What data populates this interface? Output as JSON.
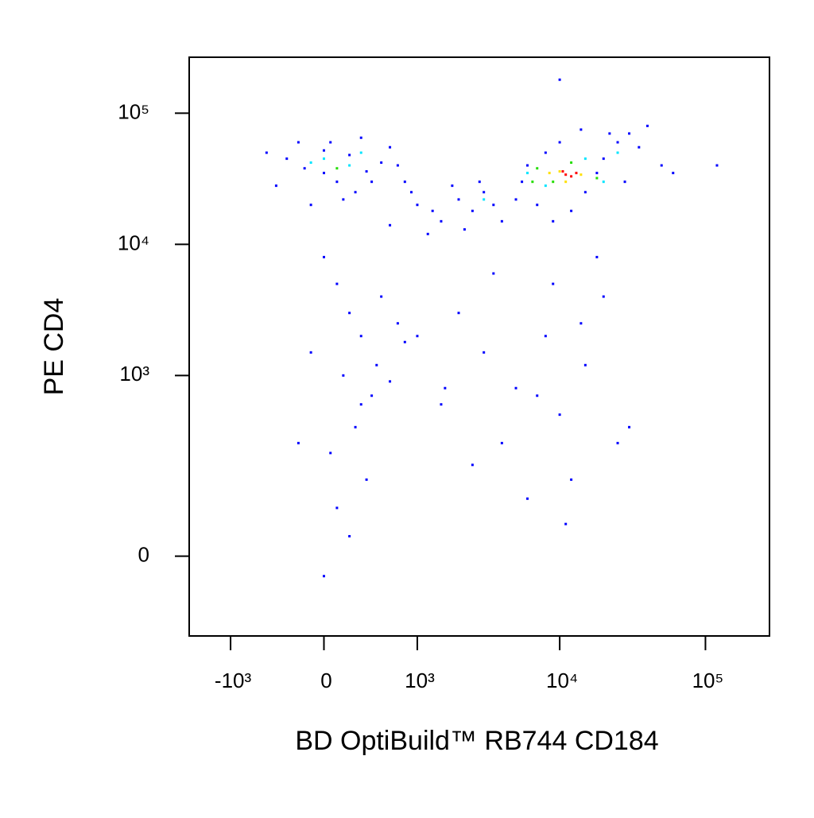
{
  "chart_data": {
    "type": "scatter",
    "x_label": "BD OptiBuild™ RB744 CD184",
    "y_label": "PE CD4",
    "xscale": "biexponential",
    "yscale": "biexponential",
    "xlim": [
      -2000,
      275000
    ],
    "ylim": [
      -160,
      267000
    ],
    "xticks": [
      {
        "value": -1000,
        "label": "-10³"
      },
      0,
      {
        "value": 1000,
        "label": "10³"
      },
      {
        "value": 10000,
        "label": "10⁴"
      },
      {
        "value": 100000,
        "label": "10⁵"
      }
    ],
    "yticks": [
      0,
      {
        "value": 1000,
        "label": "10³"
      },
      {
        "value": 10000,
        "label": "10⁴"
      },
      {
        "value": 100000,
        "label": "10⁵"
      }
    ],
    "series": [
      {
        "color": "#0000ff",
        "x": [
          -300,
          -150,
          0,
          100,
          200,
          350,
          500,
          -400,
          50,
          250,
          600,
          -200,
          150,
          400,
          700,
          -500,
          -100,
          300,
          800,
          0,
          1000,
          1500,
          2000,
          2500,
          3000,
          1200,
          1800,
          3500,
          4000,
          900,
          2200,
          2800,
          5000,
          600,
          1300,
          6000,
          8000,
          15000,
          20000,
          25000,
          30000,
          35000,
          7000,
          10000,
          18000,
          40000,
          12000,
          28000,
          50000,
          5500,
          9000,
          22000,
          14000,
          60000,
          0,
          100,
          200,
          300,
          -100,
          150,
          400,
          250,
          50,
          350,
          100,
          200,
          0,
          500,
          700,
          600,
          300,
          -200,
          800,
          450,
          2000,
          3000,
          5000,
          8000,
          10000,
          15000,
          20000,
          25000,
          12000,
          7000,
          4000,
          9000,
          18000,
          30000,
          6000,
          1500,
          2500,
          11000,
          14000,
          3500,
          120000,
          10000,
          1000,
          1600
        ],
        "y": [
          45000,
          38000,
          52000,
          30000,
          48000,
          36000,
          42000,
          28000,
          60000,
          25000,
          55000,
          60000,
          22000,
          30000,
          40000,
          50000,
          20000,
          65000,
          30000,
          35000,
          20000,
          15000,
          22000,
          18000,
          25000,
          12000,
          28000,
          20000,
          15000,
          25000,
          13000,
          30000,
          22000,
          14000,
          18000,
          40000,
          50000,
          25000,
          45000,
          60000,
          70000,
          55000,
          20000,
          60000,
          35000,
          80000,
          18000,
          30000,
          40000,
          30000,
          15000,
          70000,
          75000,
          35000,
          8000,
          5000,
          3000,
          2000,
          1500,
          1000,
          700,
          400,
          250,
          150,
          80,
          30,
          -30,
          4000,
          2500,
          900,
          600,
          300,
          1800,
          1200,
          3000,
          1500,
          800,
          2000,
          500,
          1200,
          4000,
          300,
          150,
          700,
          300,
          5000,
          8000,
          400,
          100,
          600,
          200,
          50,
          2500,
          6000,
          40000,
          180000,
          2000,
          800
        ]
      },
      {
        "color": "#00e5ff",
        "x": [
          0,
          200,
          -100,
          300,
          6000,
          20000,
          25000,
          3000,
          8000,
          15000
        ],
        "y": [
          45000,
          40000,
          42000,
          50000,
          35000,
          30000,
          50000,
          22000,
          28000,
          45000
        ]
      },
      {
        "color": "#22dd00",
        "x": [
          100,
          7000,
          9000,
          18000,
          12000,
          6500
        ],
        "y": [
          38000,
          38000,
          30000,
          32000,
          42000,
          30000
        ]
      },
      {
        "color": "#ffe000",
        "x": [
          10000,
          14000,
          8500,
          11000
        ],
        "y": [
          36000,
          34000,
          35000,
          30000
        ]
      },
      {
        "color": "#ff0000",
        "x": [
          11000,
          12000,
          10500,
          13000
        ],
        "y": [
          34000,
          33000,
          36000,
          35000
        ]
      }
    ]
  }
}
